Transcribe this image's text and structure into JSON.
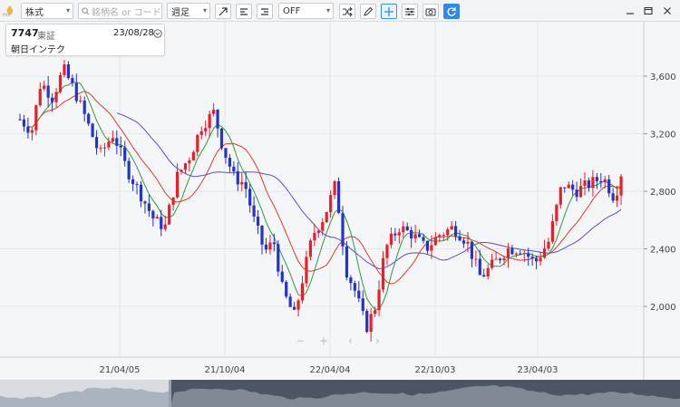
{
  "toolbar": {
    "market": "株式",
    "search_placeholder": "銘柄名 or コード",
    "period": "週足",
    "indicator": "OFF"
  },
  "logo": {
    "label": "Hot"
  },
  "info": {
    "code": "7747",
    "exchange": "東証",
    "date": "23/08/28",
    "name": "朝日インテク"
  },
  "colors": {
    "up": "#e8202a",
    "down": "#2434c8",
    "ma_short": "#2f9b3a",
    "ma_mid": "#e03a2f",
    "ma_long": "#5a4fd0",
    "accent": "#2f88ea"
  },
  "chart_data": {
    "type": "candlestick",
    "y_ticks": [
      "3,600",
      "3,200",
      "2,800",
      "2,400",
      "2,000"
    ],
    "y_values": [
      3600,
      3200,
      2800,
      2400,
      2000
    ],
    "x_ticks": [
      "21/04/05",
      "21/10/04",
      "22/04/04",
      "22/10/03",
      "23/04/03"
    ],
    "ylim": [
      1800,
      3800
    ],
    "grid": true,
    "series_summary": [
      {
        "period": "2020-10",
        "approx_close": 3300
      },
      {
        "period": "2021-01",
        "approx_close": 3550
      },
      {
        "period": "2021-04",
        "approx_close": 3100
      },
      {
        "period": "2021-07",
        "approx_close": 2600
      },
      {
        "period": "2021-10",
        "approx_close": 3350
      },
      {
        "period": "2022-01",
        "approx_close": 2500
      },
      {
        "period": "2022-02",
        "approx_close": 2000
      },
      {
        "period": "2022-04",
        "approx_close": 2750
      },
      {
        "period": "2022-07",
        "approx_close": 1850
      },
      {
        "period": "2022-10",
        "approx_close": 2550
      },
      {
        "period": "2023-01",
        "approx_close": 2200
      },
      {
        "period": "2023-04",
        "approx_close": 2400
      },
      {
        "period": "2023-06",
        "approx_close": 2800
      },
      {
        "period": "2023-08",
        "approx_close": 2950
      }
    ]
  }
}
